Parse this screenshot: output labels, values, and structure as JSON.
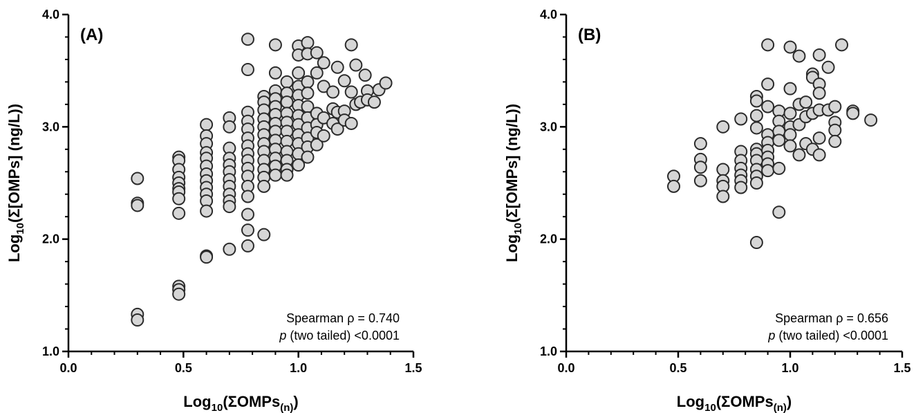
{
  "chart_data": [
    {
      "type": "scatter",
      "panel_label": "(A)",
      "xlim": [
        0.0,
        1.5
      ],
      "ylim": [
        1.0,
        4.0
      ],
      "x_ticks": [
        "0.0",
        "0.5",
        "1.0",
        "1.5"
      ],
      "y_ticks": [
        "1.0",
        "2.0",
        "3.0",
        "4.0"
      ],
      "xlabel": {
        "prefix": "Log",
        "sub": "10",
        "main": "(ΣOMPs",
        "sub2": "(n)",
        "close": ")"
      },
      "ylabel": {
        "prefix": "Log",
        "sub": "10",
        "main": "(Σ[OMPs] (ng/L))"
      },
      "stats": {
        "line1": "Spearman ρ = 0.740",
        "line2_italic": "p",
        "line2_rest": " (two tailed) <0.0001"
      },
      "point_fill": "#d6d6d6",
      "point_stroke": "#2b2b2b",
      "points": [
        [
          0.3,
          2.54
        ],
        [
          0.3,
          2.32
        ],
        [
          0.3,
          2.3
        ],
        [
          0.3,
          1.33
        ],
        [
          0.3,
          1.28
        ],
        [
          0.48,
          2.73
        ],
        [
          0.48,
          2.7
        ],
        [
          0.48,
          2.62
        ],
        [
          0.48,
          2.55
        ],
        [
          0.48,
          2.5
        ],
        [
          0.48,
          2.45
        ],
        [
          0.48,
          2.42
        ],
        [
          0.48,
          2.36
        ],
        [
          0.48,
          2.23
        ],
        [
          0.48,
          1.58
        ],
        [
          0.48,
          1.55
        ],
        [
          0.48,
          1.51
        ],
        [
          0.6,
          3.02
        ],
        [
          0.6,
          2.92
        ],
        [
          0.6,
          2.85
        ],
        [
          0.6,
          2.77
        ],
        [
          0.6,
          2.72
        ],
        [
          0.6,
          2.65
        ],
        [
          0.6,
          2.58
        ],
        [
          0.6,
          2.52
        ],
        [
          0.6,
          2.46
        ],
        [
          0.6,
          2.4
        ],
        [
          0.6,
          2.34
        ],
        [
          0.6,
          2.25
        ],
        [
          0.6,
          1.85
        ],
        [
          0.6,
          1.84
        ],
        [
          0.7,
          3.08
        ],
        [
          0.7,
          3.0
        ],
        [
          0.7,
          2.81
        ],
        [
          0.7,
          2.72
        ],
        [
          0.7,
          2.66
        ],
        [
          0.7,
          2.6
        ],
        [
          0.7,
          2.53
        ],
        [
          0.7,
          2.47
        ],
        [
          0.7,
          2.4
        ],
        [
          0.7,
          2.34
        ],
        [
          0.7,
          2.29
        ],
        [
          0.7,
          1.91
        ],
        [
          0.78,
          3.78
        ],
        [
          0.78,
          3.51
        ],
        [
          0.78,
          3.13
        ],
        [
          0.78,
          3.05
        ],
        [
          0.78,
          2.98
        ],
        [
          0.78,
          2.9
        ],
        [
          0.78,
          2.83
        ],
        [
          0.78,
          2.76
        ],
        [
          0.78,
          2.7
        ],
        [
          0.78,
          2.63
        ],
        [
          0.78,
          2.56
        ],
        [
          0.78,
          2.47
        ],
        [
          0.78,
          2.38
        ],
        [
          0.78,
          2.22
        ],
        [
          0.78,
          2.08
        ],
        [
          0.78,
          1.94
        ],
        [
          0.85,
          3.27
        ],
        [
          0.85,
          3.22
        ],
        [
          0.85,
          3.15
        ],
        [
          0.85,
          3.07
        ],
        [
          0.85,
          3.0
        ],
        [
          0.85,
          2.93
        ],
        [
          0.85,
          2.85
        ],
        [
          0.85,
          2.78
        ],
        [
          0.85,
          2.7
        ],
        [
          0.85,
          2.62
        ],
        [
          0.85,
          2.55
        ],
        [
          0.85,
          2.47
        ],
        [
          0.85,
          2.04
        ],
        [
          0.9,
          3.73
        ],
        [
          0.9,
          3.48
        ],
        [
          0.9,
          3.32
        ],
        [
          0.9,
          3.25
        ],
        [
          0.9,
          3.18
        ],
        [
          0.9,
          3.11
        ],
        [
          0.9,
          3.03
        ],
        [
          0.9,
          2.96
        ],
        [
          0.9,
          2.88
        ],
        [
          0.9,
          2.8
        ],
        [
          0.9,
          2.72
        ],
        [
          0.9,
          2.65
        ],
        [
          0.9,
          2.57
        ],
        [
          0.95,
          3.4
        ],
        [
          0.95,
          3.3
        ],
        [
          0.95,
          3.22
        ],
        [
          0.95,
          3.12
        ],
        [
          0.95,
          3.04
        ],
        [
          0.95,
          2.96
        ],
        [
          0.95,
          2.87
        ],
        [
          0.95,
          2.78
        ],
        [
          0.95,
          2.7
        ],
        [
          0.95,
          2.62
        ],
        [
          0.95,
          2.57
        ],
        [
          1.0,
          3.72
        ],
        [
          1.0,
          3.64
        ],
        [
          1.0,
          3.48
        ],
        [
          1.0,
          3.36
        ],
        [
          1.0,
          3.28
        ],
        [
          1.0,
          3.19
        ],
        [
          1.0,
          3.1
        ],
        [
          1.0,
          3.02
        ],
        [
          1.0,
          2.93
        ],
        [
          1.0,
          2.85
        ],
        [
          1.0,
          2.76
        ],
        [
          1.0,
          2.66
        ],
        [
          1.04,
          3.75
        ],
        [
          1.04,
          3.65
        ],
        [
          1.04,
          3.4
        ],
        [
          1.04,
          3.3
        ],
        [
          1.04,
          3.18
        ],
        [
          1.04,
          3.08
        ],
        [
          1.04,
          2.99
        ],
        [
          1.04,
          2.9
        ],
        [
          1.04,
          2.82
        ],
        [
          1.04,
          2.73
        ],
        [
          1.08,
          3.66
        ],
        [
          1.08,
          3.48
        ],
        [
          1.08,
          3.12
        ],
        [
          1.08,
          3.02
        ],
        [
          1.08,
          2.95
        ],
        [
          1.08,
          2.84
        ],
        [
          1.11,
          3.57
        ],
        [
          1.11,
          3.36
        ],
        [
          1.11,
          3.08
        ],
        [
          1.11,
          2.92
        ],
        [
          1.15,
          3.31
        ],
        [
          1.15,
          3.16
        ],
        [
          1.15,
          3.03
        ],
        [
          1.17,
          3.53
        ],
        [
          1.17,
          3.13
        ],
        [
          1.17,
          2.98
        ],
        [
          1.2,
          3.41
        ],
        [
          1.2,
          3.14
        ],
        [
          1.2,
          3.06
        ],
        [
          1.23,
          3.73
        ],
        [
          1.23,
          3.31
        ],
        [
          1.23,
          3.03
        ],
        [
          1.25,
          3.55
        ],
        [
          1.25,
          3.2
        ],
        [
          1.27,
          3.22
        ],
        [
          1.29,
          3.46
        ],
        [
          1.3,
          3.32
        ],
        [
          1.3,
          3.24
        ],
        [
          1.33,
          3.22
        ],
        [
          1.35,
          3.33
        ],
        [
          1.38,
          3.39
        ]
      ]
    },
    {
      "type": "scatter",
      "panel_label": "(B)",
      "xlim": [
        0.0,
        1.5
      ],
      "ylim": [
        1.0,
        4.0
      ],
      "x_ticks": [
        "0.0",
        "0.5",
        "1.0",
        "1.5"
      ],
      "y_ticks": [
        "1.0",
        "2.0",
        "3.0",
        "4.0"
      ],
      "xlabel": {
        "prefix": "Log",
        "sub": "10",
        "main": "(ΣOMPs",
        "sub2": "(n)",
        "close": ")"
      },
      "ylabel": {
        "prefix": "Log",
        "sub": "10",
        "main": "(Σ[OMPs] (ng/L))"
      },
      "stats": {
        "line1": "Spearman ρ = 0.656",
        "line2_italic": "p",
        "line2_rest": " (two tailed) <0.0001"
      },
      "point_fill": "#d6d6d6",
      "point_stroke": "#2b2b2b",
      "points": [
        [
          0.48,
          2.56
        ],
        [
          0.48,
          2.47
        ],
        [
          0.6,
          2.85
        ],
        [
          0.6,
          2.71
        ],
        [
          0.6,
          2.64
        ],
        [
          0.6,
          2.52
        ],
        [
          0.7,
          3.0
        ],
        [
          0.7,
          2.62
        ],
        [
          0.7,
          2.52
        ],
        [
          0.7,
          2.47
        ],
        [
          0.7,
          2.38
        ],
        [
          0.78,
          3.07
        ],
        [
          0.78,
          2.78
        ],
        [
          0.78,
          2.7
        ],
        [
          0.78,
          2.63
        ],
        [
          0.78,
          2.57
        ],
        [
          0.78,
          2.52
        ],
        [
          0.78,
          2.46
        ],
        [
          0.85,
          3.27
        ],
        [
          0.85,
          3.23
        ],
        [
          0.85,
          3.1
        ],
        [
          0.85,
          2.99
        ],
        [
          0.85,
          2.8
        ],
        [
          0.85,
          2.76
        ],
        [
          0.85,
          2.7
        ],
        [
          0.85,
          2.62
        ],
        [
          0.85,
          2.56
        ],
        [
          0.85,
          2.5
        ],
        [
          0.85,
          1.97
        ],
        [
          0.9,
          3.73
        ],
        [
          0.9,
          3.38
        ],
        [
          0.9,
          3.18
        ],
        [
          0.9,
          2.93
        ],
        [
          0.9,
          2.86
        ],
        [
          0.9,
          2.79
        ],
        [
          0.9,
          2.73
        ],
        [
          0.9,
          2.67
        ],
        [
          0.9,
          2.61
        ],
        [
          0.95,
          3.14
        ],
        [
          0.95,
          3.05
        ],
        [
          0.95,
          2.96
        ],
        [
          0.95,
          2.88
        ],
        [
          0.95,
          2.63
        ],
        [
          0.95,
          2.24
        ],
        [
          1.0,
          3.71
        ],
        [
          1.0,
          3.34
        ],
        [
          1.0,
          3.12
        ],
        [
          1.0,
          3.0
        ],
        [
          1.0,
          2.93
        ],
        [
          1.0,
          2.83
        ],
        [
          1.04,
          3.63
        ],
        [
          1.04,
          3.2
        ],
        [
          1.04,
          3.02
        ],
        [
          1.04,
          2.75
        ],
        [
          1.07,
          3.22
        ],
        [
          1.07,
          3.09
        ],
        [
          1.07,
          2.85
        ],
        [
          1.1,
          3.47
        ],
        [
          1.1,
          3.44
        ],
        [
          1.1,
          3.12
        ],
        [
          1.1,
          2.8
        ],
        [
          1.13,
          3.64
        ],
        [
          1.13,
          3.38
        ],
        [
          1.13,
          3.3
        ],
        [
          1.13,
          3.15
        ],
        [
          1.13,
          2.9
        ],
        [
          1.13,
          2.75
        ],
        [
          1.17,
          3.53
        ],
        [
          1.17,
          3.15
        ],
        [
          1.2,
          3.18
        ],
        [
          1.2,
          3.04
        ],
        [
          1.2,
          2.97
        ],
        [
          1.2,
          2.87
        ],
        [
          1.23,
          3.73
        ],
        [
          1.28,
          3.14
        ],
        [
          1.28,
          3.12
        ],
        [
          1.36,
          3.06
        ]
      ]
    }
  ]
}
